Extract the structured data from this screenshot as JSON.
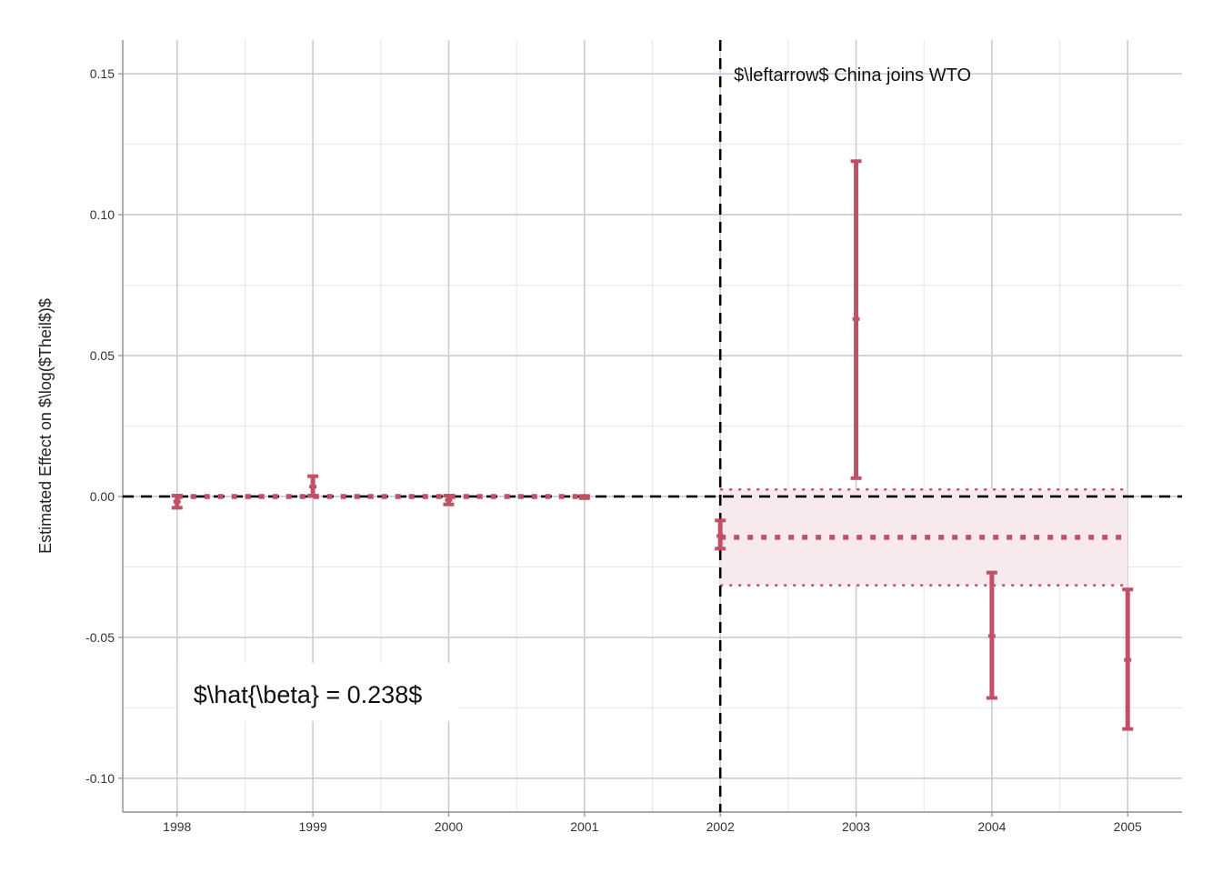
{
  "chart_data": {
    "type": "scatter",
    "title": "",
    "xlabel": "",
    "ylabel": "Estimated Effect on $\\log($Theil$)$",
    "x_ticks": [
      1998,
      1999,
      2000,
      2001,
      2002,
      2003,
      2004,
      2005
    ],
    "y_ticks": [
      -0.1,
      -0.05,
      0.0,
      0.05,
      0.1,
      0.15
    ],
    "y_tick_labels": [
      "-0.10",
      "-0.05",
      "0.00",
      "0.05",
      "0.10",
      "0.15"
    ],
    "xlim": [
      1997.6,
      2005.4
    ],
    "ylim": [
      -0.112,
      0.162
    ],
    "grid": true,
    "series": [
      {
        "x": [
          1998,
          1999,
          2000,
          2001,
          2002,
          2003,
          2004,
          2005
        ],
        "estimate": [
          -0.0018,
          0.0035,
          -0.0012,
          -0.0002,
          -0.014,
          0.063,
          -0.0495,
          -0.058
        ],
        "ci_low": [
          -0.004,
          0.0003,
          -0.0028,
          -0.0006,
          -0.0185,
          0.0065,
          -0.0715,
          -0.0825
        ],
        "ci_high": [
          0.0003,
          0.0072,
          0.0003,
          0.0002,
          -0.0085,
          0.119,
          -0.027,
          -0.033
        ]
      }
    ],
    "pre_period_mean": {
      "x_start": 1998,
      "x_end": 2001,
      "value": 0.0
    },
    "post_period_mean": {
      "x_start": 2002,
      "x_end": 2005,
      "value": -0.0145,
      "ci_low": -0.0315,
      "ci_high": 0.0025
    },
    "reference_hline": 0.0,
    "event_vline": 2002,
    "annotations": [
      {
        "text": "$\\leftarrow$ China joins WTO",
        "x": 2002,
        "y": 0.15
      },
      {
        "text": "$\\hat{\\beta} = 0.238$",
        "x": 1998,
        "y": -0.07
      }
    ],
    "colors": {
      "series": "#c05068",
      "band": "#f7e9ec",
      "reference": "#000000",
      "grid_major": "#c9cbd6",
      "grid_minor": "#e5e6ec",
      "axis": "#8a8c99"
    }
  }
}
